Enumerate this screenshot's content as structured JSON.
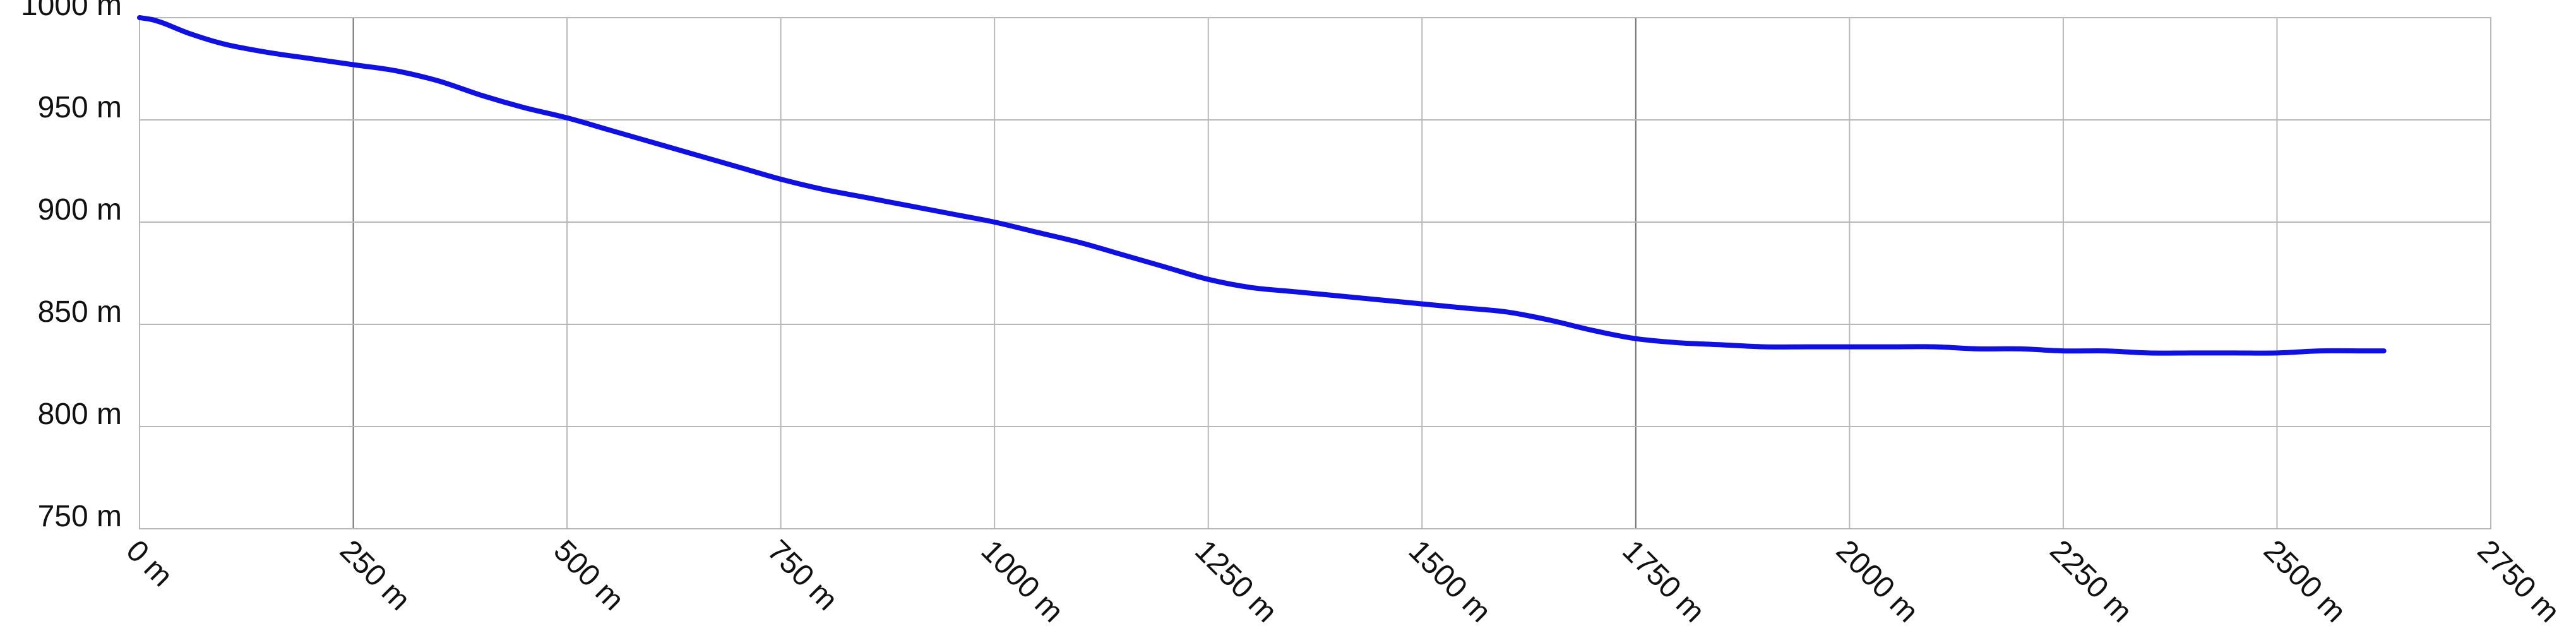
{
  "chart_data": {
    "type": "line",
    "title": "",
    "xlabel": "",
    "ylabel": "",
    "xlim": [
      0,
      2750
    ],
    "ylim": [
      750,
      1000
    ],
    "grid": true,
    "x_ticks": [
      0,
      250,
      500,
      750,
      1000,
      1250,
      1500,
      1750,
      2000,
      2250,
      2500,
      2750
    ],
    "x_tick_labels": [
      "0 m",
      "250 m",
      "500 m",
      "750 m",
      "1000 m",
      "1250 m",
      "1500 m",
      "1750 m",
      "2000 m",
      "2250 m",
      "2500 m",
      "2750 m"
    ],
    "y_ticks": [
      750,
      800,
      850,
      900,
      950,
      1000
    ],
    "y_tick_labels": [
      "750 m",
      "800 m",
      "850 m",
      "900 m",
      "950 m",
      "1000 m"
    ],
    "series": [
      {
        "color": "#1010e0",
        "x": [
          0,
          15,
          30,
          60,
          100,
          150,
          200,
          250,
          300,
          350,
          400,
          450,
          500,
          550,
          600,
          650,
          700,
          750,
          800,
          850,
          900,
          950,
          1000,
          1050,
          1100,
          1150,
          1200,
          1250,
          1300,
          1350,
          1400,
          1450,
          1500,
          1550,
          1600,
          1650,
          1700,
          1750,
          1800,
          1850,
          1900,
          1950,
          2000,
          2050,
          2100,
          2150,
          2200,
          2250,
          2300,
          2350,
          2400,
          2450,
          2500,
          2550,
          2600,
          2625
        ],
        "y": [
          1000,
          999,
          997,
          992,
          987,
          983,
          980,
          977,
          974,
          969,
          962,
          956,
          951,
          945,
          939,
          933,
          927,
          921,
          916,
          912,
          908,
          904,
          900,
          895,
          890,
          884,
          878,
          872,
          868,
          866,
          864,
          862,
          860,
          858,
          856,
          852,
          847,
          843,
          841,
          840,
          839,
          839,
          839,
          839,
          839,
          838,
          838,
          837,
          837,
          836,
          836,
          836,
          836,
          837,
          837,
          837
        ]
      }
    ]
  }
}
